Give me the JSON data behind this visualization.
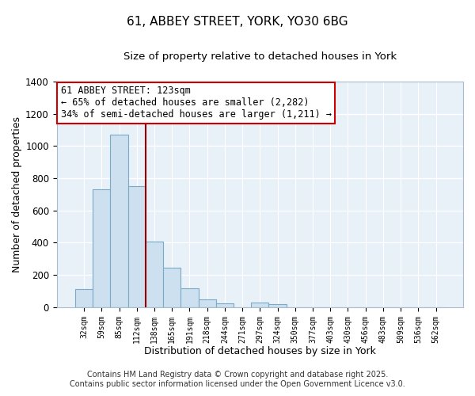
{
  "title": "61, ABBEY STREET, YORK, YO30 6BG",
  "subtitle": "Size of property relative to detached houses in York",
  "xlabel": "Distribution of detached houses by size in York",
  "ylabel": "Number of detached properties",
  "bar_color": "#cde0ef",
  "bar_edge_color": "#7aaac8",
  "background_color": "#ffffff",
  "plot_background": "#e8f0f8",
  "categories": [
    "32sqm",
    "59sqm",
    "85sqm",
    "112sqm",
    "138sqm",
    "165sqm",
    "191sqm",
    "218sqm",
    "244sqm",
    "271sqm",
    "297sqm",
    "324sqm",
    "350sqm",
    "377sqm",
    "403sqm",
    "430sqm",
    "456sqm",
    "483sqm",
    "509sqm",
    "536sqm",
    "562sqm"
  ],
  "values": [
    110,
    730,
    1070,
    750,
    405,
    245,
    115,
    50,
    25,
    0,
    28,
    20,
    0,
    0,
    0,
    0,
    0,
    0,
    0,
    0,
    0
  ],
  "ylim": [
    0,
    1400
  ],
  "yticks": [
    0,
    200,
    400,
    600,
    800,
    1000,
    1200,
    1400
  ],
  "property_line_color": "#990000",
  "annotation_title": "61 ABBEY STREET: 123sqm",
  "annotation_line1": "← 65% of detached houses are smaller (2,282)",
  "annotation_line2": "34% of semi-detached houses are larger (1,211) →",
  "annotation_box_color": "#ffffff",
  "annotation_border_color": "#cc0000",
  "footnote1": "Contains HM Land Registry data © Crown copyright and database right 2025.",
  "footnote2": "Contains public sector information licensed under the Open Government Licence v3.0.",
  "grid_color": "#ffffff",
  "title_fontsize": 11,
  "subtitle_fontsize": 9.5,
  "annotation_fontsize": 8.5,
  "footnote_fontsize": 7,
  "xlabel_fontsize": 9,
  "ylabel_fontsize": 9
}
